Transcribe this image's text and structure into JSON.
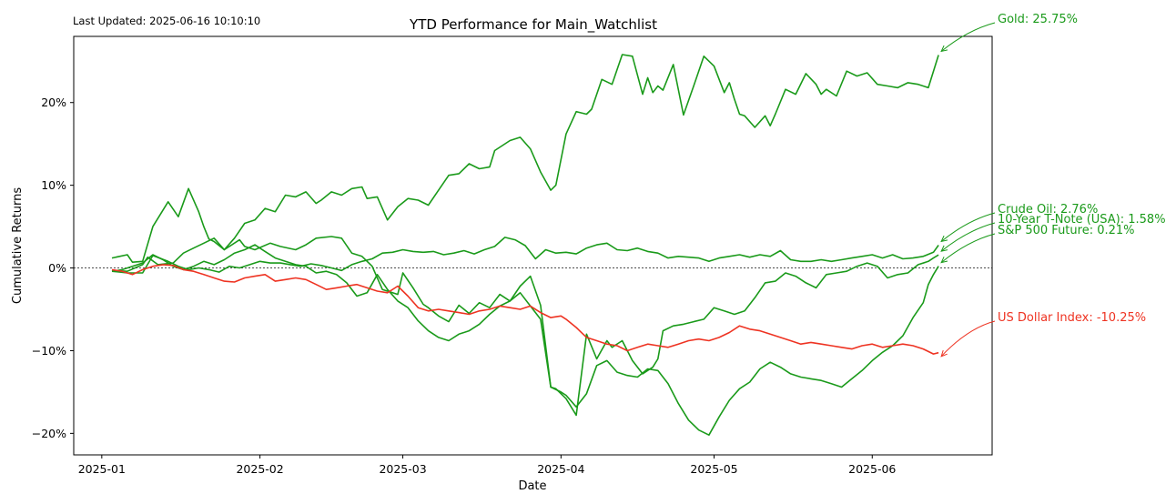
{
  "chart_data": {
    "type": "line",
    "title": "YTD Performance for Main_Watchlist",
    "last_updated": "Last Updated: 2025-06-16 10:10:10",
    "xlabel": "Date",
    "ylabel": "Cumulative Returns",
    "ylim": [
      -22.6,
      28.0
    ],
    "y_ticks": [
      {
        "value": 20,
        "label": "20%"
      },
      {
        "value": 10,
        "label": "10%"
      },
      {
        "value": 0,
        "label": "0%"
      },
      {
        "value": -10,
        "label": "−10%"
      },
      {
        "value": -20,
        "label": "−20%"
      }
    ],
    "x_ticks": [
      {
        "day": 0,
        "label": "2025-01"
      },
      {
        "day": 31,
        "label": "2025-02"
      },
      {
        "day": 59,
        "label": "2025-03"
      },
      {
        "day": 90,
        "label": "2025-04"
      },
      {
        "day": 120,
        "label": "2025-05"
      },
      {
        "day": 151,
        "label": "2025-06"
      }
    ],
    "xlim_days": [
      -5.5,
      174.5
    ],
    "colors": {
      "gain": "#1a9a1a",
      "loss": "#ee3322",
      "zero_line": "#333333"
    },
    "series": [
      {
        "name": "Gold",
        "label": "Gold: 25.75%",
        "final": 25.75,
        "color": "#1a9a1a",
        "x": [
          2,
          5,
          6,
          8,
          10,
          13,
          15,
          17,
          19,
          20,
          21,
          22,
          24,
          26,
          28,
          30,
          32,
          34,
          36,
          38,
          40,
          42,
          43,
          45,
          47,
          49,
          51,
          52,
          54,
          56,
          58,
          60,
          62,
          64,
          66,
          68,
          70,
          72,
          74,
          76,
          77,
          80,
          82,
          84,
          86,
          88,
          89,
          91,
          93,
          95,
          96,
          98,
          100,
          102,
          104,
          106,
          107,
          108,
          109,
          110,
          112,
          114,
          116,
          118,
          120,
          122,
          123,
          124,
          125,
          126,
          128,
          130,
          131,
          132,
          134,
          136,
          138,
          140,
          141,
          142,
          144,
          146,
          148,
          150,
          152,
          154,
          156,
          158,
          160,
          162,
          164
        ],
        "y": [
          1.2,
          1.6,
          0.7,
          0.8,
          5,
          8,
          6.2,
          9.6,
          6.8,
          5,
          3.5,
          3.2,
          2.2,
          3.6,
          5.4,
          5.8,
          7.2,
          6.8,
          8.8,
          8.6,
          9.2,
          7.8,
          8.2,
          9.2,
          8.8,
          9.6,
          9.8,
          8.4,
          8.6,
          5.8,
          7.4,
          8.4,
          8.2,
          7.6,
          9.4,
          11.2,
          11.4,
          12.6,
          12,
          12.2,
          14.2,
          15.4,
          15.8,
          14.4,
          11.6,
          9.4,
          10,
          16.2,
          18.9,
          18.6,
          19.2,
          22.8,
          22.2,
          25.8,
          25.6,
          21,
          23,
          21.2,
          22,
          21.5,
          24.6,
          18.5,
          22,
          25.6,
          24.4,
          21.2,
          22.4,
          20.4,
          18.6,
          18.4,
          17,
          18.4,
          17.2,
          18.6,
          21.6,
          21,
          23.5,
          22.2,
          21,
          21.6,
          20.8,
          23.8,
          23.2,
          23.6,
          22.2,
          22,
          21.8,
          22.4,
          22.2,
          21.8,
          25.75
        ]
      },
      {
        "name": "Crude Oil",
        "label": "Crude Oil: 2.76%",
        "final": 2.76,
        "color": "#1a9a1a",
        "x": [
          2,
          5,
          8,
          10,
          13,
          15,
          17,
          19,
          21,
          23,
          25,
          27,
          29,
          31,
          33,
          35,
          37,
          39,
          41,
          43,
          45,
          47,
          49,
          51,
          53,
          55,
          57,
          59,
          61,
          63,
          65,
          67,
          69,
          71,
          73,
          75,
          77,
          79,
          81,
          83,
          85,
          87,
          89,
          91,
          93,
          95,
          97,
          99,
          101,
          103,
          105,
          107,
          109,
          111,
          113,
          115,
          117,
          119,
          121,
          123,
          125,
          127,
          129,
          131,
          133,
          135,
          137,
          139,
          141,
          143,
          145,
          147,
          149,
          151,
          153,
          155,
          157,
          159,
          161,
          163,
          164
        ],
        "y": [
          -0.4,
          -0.6,
          -0.6,
          1.5,
          0.8,
          0.2,
          -0.2,
          0,
          -0.2,
          -0.5,
          0.2,
          0,
          0.4,
          0.8,
          0.6,
          0.6,
          0.4,
          0.2,
          0.5,
          0.3,
          0,
          -0.3,
          0.4,
          0.8,
          1.1,
          1.8,
          1.9,
          2.2,
          2.0,
          1.9,
          2.0,
          1.6,
          1.8,
          2.1,
          1.7,
          2.2,
          2.6,
          3.7,
          3.4,
          2.7,
          1.1,
          2.2,
          1.8,
          1.9,
          1.7,
          2.4,
          2.8,
          3.0,
          2.2,
          2.1,
          2.4,
          2.0,
          1.8,
          1.2,
          1.4,
          1.3,
          1.2,
          0.8,
          1.2,
          1.4,
          1.6,
          1.3,
          1.6,
          1.4,
          2.1,
          1.0,
          0.8,
          0.8,
          1.0,
          0.8,
          1.0,
          1.2,
          1.4,
          1.6,
          1.2,
          1.6,
          1.1,
          1.2,
          1.4,
          1.9,
          2.76
        ]
      },
      {
        "name": "10-Year T-Note (USA)",
        "label": "10-Year T-Note (USA): 1.58%",
        "final": 1.58,
        "color": "#1a9a1a",
        "x": [
          2,
          5,
          8,
          9,
          11,
          14,
          16,
          18,
          20,
          22,
          24,
          27,
          28,
          30,
          33,
          35,
          38,
          40,
          42,
          45,
          47,
          49,
          51,
          53,
          55,
          57,
          58,
          59,
          61,
          63,
          64,
          66,
          68,
          70,
          72,
          74,
          76,
          78,
          80,
          82,
          84,
          86,
          88,
          89,
          91,
          93,
          95,
          97,
          99,
          100,
          102,
          104,
          106,
          108,
          109,
          110,
          112,
          114,
          116,
          118,
          120,
          122,
          124,
          126,
          128,
          130,
          132,
          134,
          136,
          138,
          140,
          142,
          144,
          146,
          148,
          150,
          152,
          154,
          156,
          158,
          160,
          162,
          163,
          164
        ],
        "y": [
          -0.3,
          -0.4,
          0.4,
          1.3,
          0.4,
          0.6,
          1.8,
          2.4,
          3.0,
          3.6,
          2.2,
          3.4,
          2.6,
          2.2,
          3.0,
          2.6,
          2.2,
          2.8,
          3.6,
          3.8,
          3.6,
          1.8,
          1.4,
          0.2,
          -2.6,
          -3.0,
          -3.2,
          -0.6,
          -2.4,
          -4.4,
          -4.8,
          -5.8,
          -6.5,
          -4.5,
          -5.5,
          -4.2,
          -4.8,
          -3.2,
          -4.0,
          -2.2,
          -1.0,
          -4.5,
          -14.4,
          -14.6,
          -15.8,
          -17.8,
          -8.0,
          -11.0,
          -8.8,
          -9.6,
          -8.8,
          -11.2,
          -12.8,
          -12.0,
          -11.0,
          -7.6,
          -7.0,
          -6.8,
          -6.5,
          -6.2,
          -4.8,
          -5.2,
          -5.6,
          -5.2,
          -3.6,
          -1.8,
          -1.6,
          -0.6,
          -1.0,
          -1.8,
          -2.4,
          -0.8,
          -0.6,
          -0.4,
          0.2,
          0.6,
          0.2,
          -1.2,
          -0.8,
          -0.6,
          0.4,
          0.8,
          1.2,
          1.58
        ]
      },
      {
        "name": "S&P 500 Future",
        "label": "S&P 500 Future: 0.21%",
        "final": 0.21,
        "color": "#1a9a1a",
        "x": [
          2,
          4,
          6,
          8,
          10,
          12,
          14,
          16,
          18,
          20,
          22,
          24,
          26,
          28,
          30,
          32,
          34,
          36,
          38,
          40,
          42,
          44,
          46,
          48,
          50,
          52,
          54,
          56,
          58,
          60,
          62,
          64,
          66,
          68,
          70,
          72,
          74,
          76,
          78,
          80,
          82,
          84,
          86,
          88,
          90,
          91,
          93,
          95,
          97,
          99,
          101,
          103,
          105,
          107,
          109,
          111,
          113,
          115,
          117,
          119,
          121,
          123,
          125,
          127,
          129,
          131,
          133,
          135,
          137,
          139,
          141,
          143,
          145,
          147,
          149,
          151,
          153,
          155,
          157,
          159,
          161,
          162,
          163,
          164
        ],
        "y": [
          -0.4,
          -0.2,
          0.2,
          0.6,
          1.6,
          1.0,
          0.2,
          -0.2,
          0.2,
          0.8,
          0.4,
          1.0,
          1.8,
          2.2,
          2.8,
          2.0,
          1.2,
          0.8,
          0.4,
          0.2,
          -0.6,
          -0.4,
          -0.8,
          -1.8,
          -3.4,
          -3.0,
          -0.8,
          -2.6,
          -4.0,
          -4.8,
          -6.4,
          -7.6,
          -8.4,
          -8.8,
          -8.0,
          -7.6,
          -6.8,
          -5.6,
          -4.6,
          -4.0,
          -3.0,
          -4.6,
          -6.2,
          -14.4,
          -15.0,
          -15.4,
          -16.8,
          -15.2,
          -11.8,
          -11.2,
          -12.6,
          -13.0,
          -13.2,
          -12.2,
          -12.4,
          -14.0,
          -16.4,
          -18.4,
          -19.6,
          -20.2,
          -18.0,
          -16.0,
          -14.6,
          -13.8,
          -12.2,
          -11.4,
          -12.0,
          -12.8,
          -13.2,
          -13.4,
          -13.6,
          -14.0,
          -14.4,
          -13.4,
          -12.4,
          -11.2,
          -10.2,
          -9.4,
          -8.2,
          -6.0,
          -4.2,
          -2.0,
          -0.8,
          0.21
        ]
      },
      {
        "name": "US Dollar Index",
        "label": "US Dollar Index: -10.25%",
        "final": -10.25,
        "color": "#ee3322",
        "x": [
          2,
          4,
          6,
          8,
          10,
          12,
          14,
          16,
          18,
          20,
          22,
          24,
          26,
          28,
          30,
          32,
          34,
          36,
          38,
          40,
          42,
          44,
          46,
          48,
          50,
          52,
          54,
          56,
          58,
          60,
          62,
          64,
          66,
          68,
          70,
          72,
          74,
          76,
          78,
          80,
          82,
          84,
          86,
          88,
          90,
          91,
          93,
          95,
          97,
          99,
          101,
          103,
          105,
          107,
          109,
          111,
          113,
          115,
          117,
          119,
          121,
          123,
          125,
          127,
          129,
          131,
          133,
          135,
          137,
          139,
          141,
          143,
          145,
          147,
          149,
          151,
          153,
          155,
          157,
          159,
          161,
          163,
          164
        ],
        "y": [
          -0.2,
          -0.4,
          -0.8,
          -0.2,
          0.2,
          0.4,
          0.3,
          -0.2,
          -0.4,
          -0.8,
          -1.2,
          -1.6,
          -1.7,
          -1.2,
          -1.0,
          -0.8,
          -1.6,
          -1.4,
          -1.2,
          -1.4,
          -2.0,
          -2.6,
          -2.4,
          -2.2,
          -2.0,
          -2.4,
          -2.8,
          -3.0,
          -2.2,
          -3.4,
          -4.8,
          -5.2,
          -5.0,
          -5.2,
          -5.4,
          -5.6,
          -5.2,
          -5.0,
          -4.6,
          -4.8,
          -5.0,
          -4.6,
          -5.4,
          -6.0,
          -5.8,
          -6.2,
          -7.2,
          -8.4,
          -8.8,
          -9.2,
          -9.4,
          -10.0,
          -9.6,
          -9.2,
          -9.4,
          -9.6,
          -9.2,
          -8.8,
          -8.6,
          -8.8,
          -8.4,
          -7.8,
          -7.0,
          -7.4,
          -7.6,
          -8.0,
          -8.4,
          -8.8,
          -9.2,
          -9.0,
          -9.2,
          -9.4,
          -9.6,
          -9.8,
          -9.4,
          -9.2,
          -9.6,
          -9.4,
          -9.2,
          -9.4,
          -9.8,
          -10.4,
          -10.25
        ]
      }
    ]
  }
}
